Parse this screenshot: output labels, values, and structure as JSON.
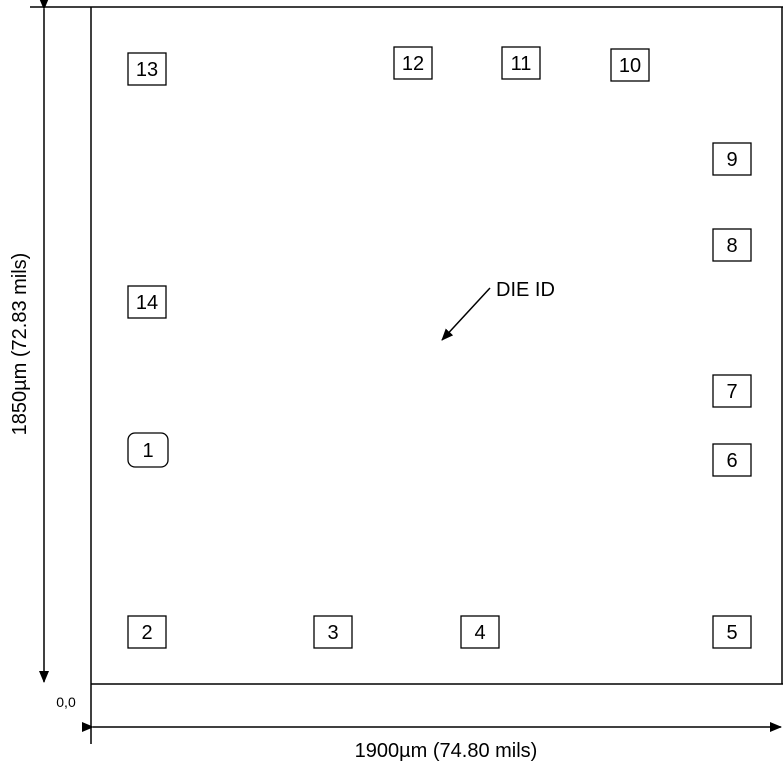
{
  "die": {
    "width_label": "1900µm (74.80 mils)",
    "height_label": "1850µm (72.83 mils)",
    "origin_label": "0,0",
    "die_id_label": "DIE ID"
  },
  "pads": [
    {
      "id": "pad-1",
      "label": "1",
      "shape": "rounded"
    },
    {
      "id": "pad-2",
      "label": "2",
      "shape": "square"
    },
    {
      "id": "pad-3",
      "label": "3",
      "shape": "square"
    },
    {
      "id": "pad-4",
      "label": "4",
      "shape": "square"
    },
    {
      "id": "pad-5",
      "label": "5",
      "shape": "square"
    },
    {
      "id": "pad-6",
      "label": "6",
      "shape": "square"
    },
    {
      "id": "pad-7",
      "label": "7",
      "shape": "square"
    },
    {
      "id": "pad-8",
      "label": "8",
      "shape": "square"
    },
    {
      "id": "pad-9",
      "label": "9",
      "shape": "square"
    },
    {
      "id": "pad-10",
      "label": "10",
      "shape": "square"
    },
    {
      "id": "pad-11",
      "label": "11",
      "shape": "square"
    },
    {
      "id": "pad-12",
      "label": "12",
      "shape": "square"
    },
    {
      "id": "pad-13",
      "label": "13",
      "shape": "square"
    },
    {
      "id": "pad-14",
      "label": "14",
      "shape": "square"
    }
  ]
}
